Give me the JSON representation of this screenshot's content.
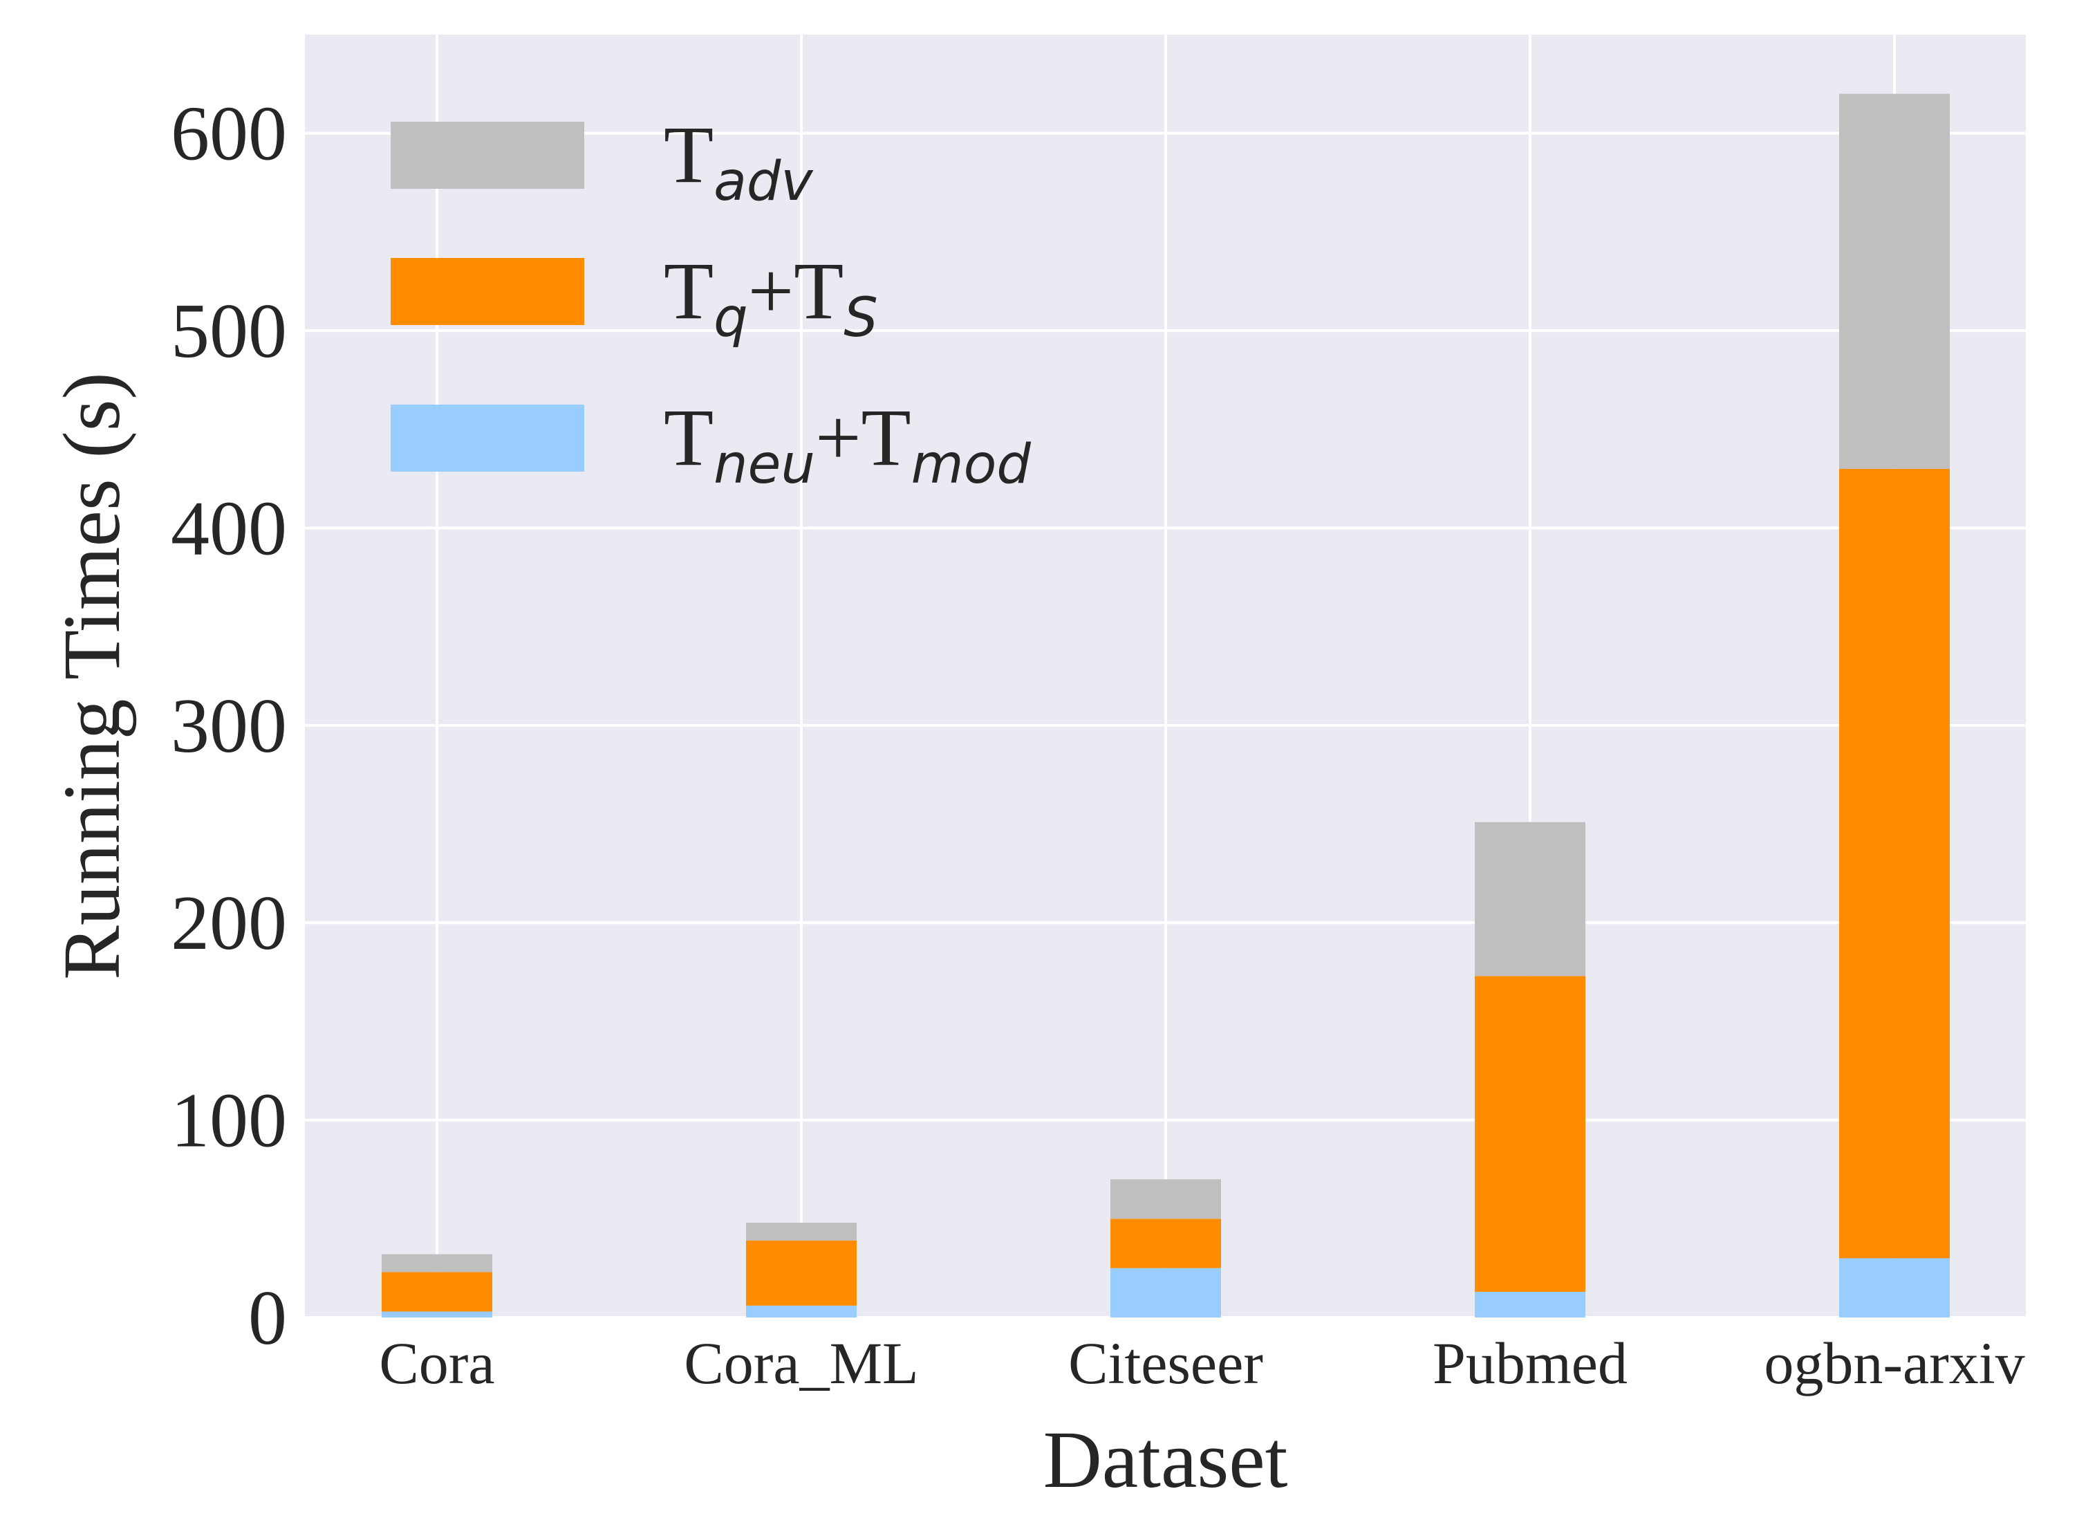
{
  "chart_data": {
    "type": "bar",
    "stacked": true,
    "title": "",
    "xlabel": "Dataset",
    "ylabel": "Running Times (s)",
    "ylim": [
      0,
      650
    ],
    "yticks": [
      0,
      100,
      200,
      300,
      400,
      500,
      600
    ],
    "grid": true,
    "legend_position": "top-left",
    "categories": [
      "Cora",
      "Cora_ML",
      "Citeseer",
      "Pubmed",
      "ogbn-arxiv"
    ],
    "series": [
      {
        "name": "Tneu+Tmod",
        "legend": {
          "base1": "T",
          "sub1": "neu",
          "plus": "+",
          "base2": "T",
          "sub2": "mod"
        },
        "color": "#99ccff",
        "values": [
          3,
          6,
          25,
          13,
          30
        ]
      },
      {
        "name": "Tq+TS",
        "legend": {
          "base1": "T",
          "sub1": "q",
          "plus": "+",
          "base2": "T",
          "sub2": "S"
        },
        "color": "#ff8c00",
        "values": [
          20,
          33,
          25,
          160,
          400
        ]
      },
      {
        "name": "Tadv",
        "legend": {
          "base1": "T",
          "sub1": "adv",
          "plus": "",
          "base2": "",
          "sub2": ""
        },
        "color": "#bfbfbf",
        "values": [
          9,
          9,
          20,
          78,
          190
        ]
      }
    ],
    "legend_order": [
      2,
      1,
      0
    ],
    "colors": {
      "plot_bg": "#eaeaf2",
      "grid": "#ffffff",
      "text": "#262626"
    }
  }
}
